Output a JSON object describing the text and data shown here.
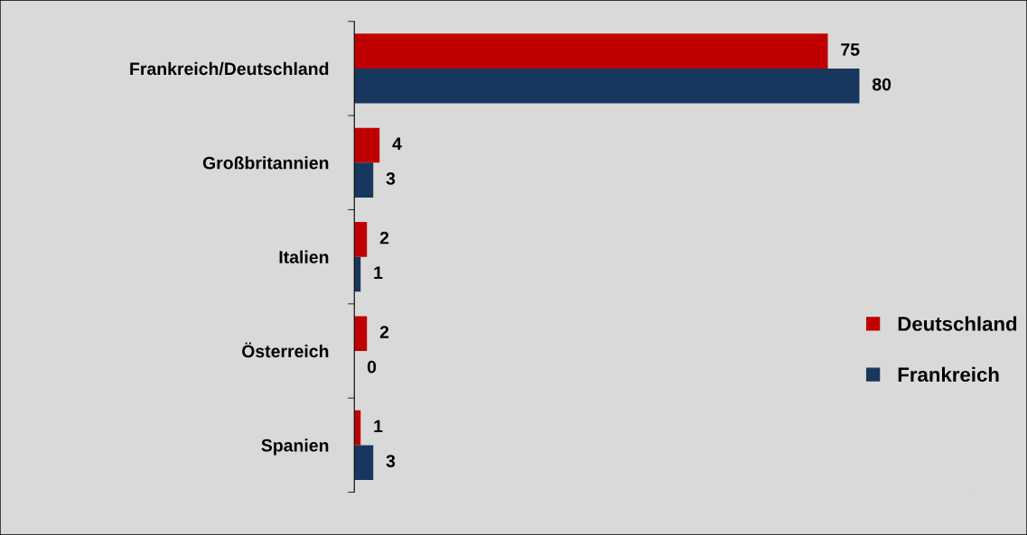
{
  "chart_data": {
    "type": "bar",
    "orientation": "horizontal",
    "categories": [
      "Frankreich/Deutschland",
      "Großbritannien",
      "Italien",
      "Österreich",
      "Spanien"
    ],
    "series": [
      {
        "name": "Deutschland",
        "color": "#c00000",
        "values": [
          75,
          4,
          2,
          2,
          1
        ]
      },
      {
        "name": "Frankreich",
        "color": "#17375e",
        "values": [
          80,
          3,
          1,
          0,
          3
        ]
      }
    ],
    "data_labels": true,
    "legend": "right",
    "grid": false,
    "tick_labels": "y"
  }
}
